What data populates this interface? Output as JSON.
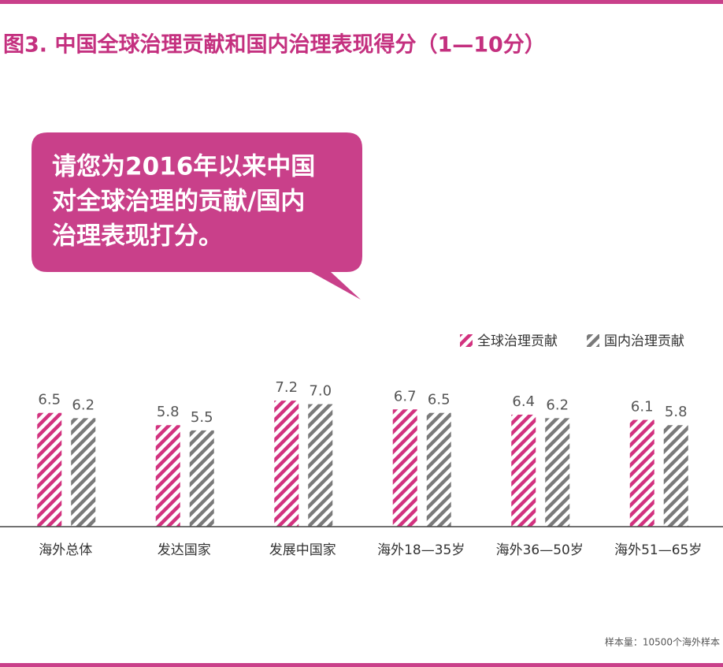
{
  "chart_data": {
    "type": "bar",
    "title": "图3. 中国全球治理贡献和国内治理表现得分（1—10分）",
    "annotation": [
      "请您为2016年以来中国",
      "对全球治理的贡献/国内",
      "治理表现打分。"
    ],
    "categories": [
      "海外总体",
      "发达国家",
      "发展中国家",
      "海外18—35岁",
      "海外36—50岁",
      "海外51—65岁"
    ],
    "series": [
      {
        "name": "全球治理贡献",
        "color": "#d2327f",
        "values": [
          6.5,
          5.8,
          7.2,
          6.7,
          6.4,
          6.1
        ],
        "value_labels": [
          "6.5",
          "5.8",
          "7.2",
          "6.7",
          "6.4",
          "6.1"
        ]
      },
      {
        "name": "国内治理贡献",
        "color": "#7a7a7a",
        "values": [
          6.2,
          5.5,
          7.0,
          6.5,
          6.2,
          5.8
        ],
        "value_labels": [
          "6.2",
          "5.5",
          "7.0",
          "6.5",
          "6.2",
          "5.8"
        ]
      }
    ],
    "ylim": [
      0,
      10
    ],
    "legend": "top-right",
    "note": "样本量：10500个海外样本"
  }
}
